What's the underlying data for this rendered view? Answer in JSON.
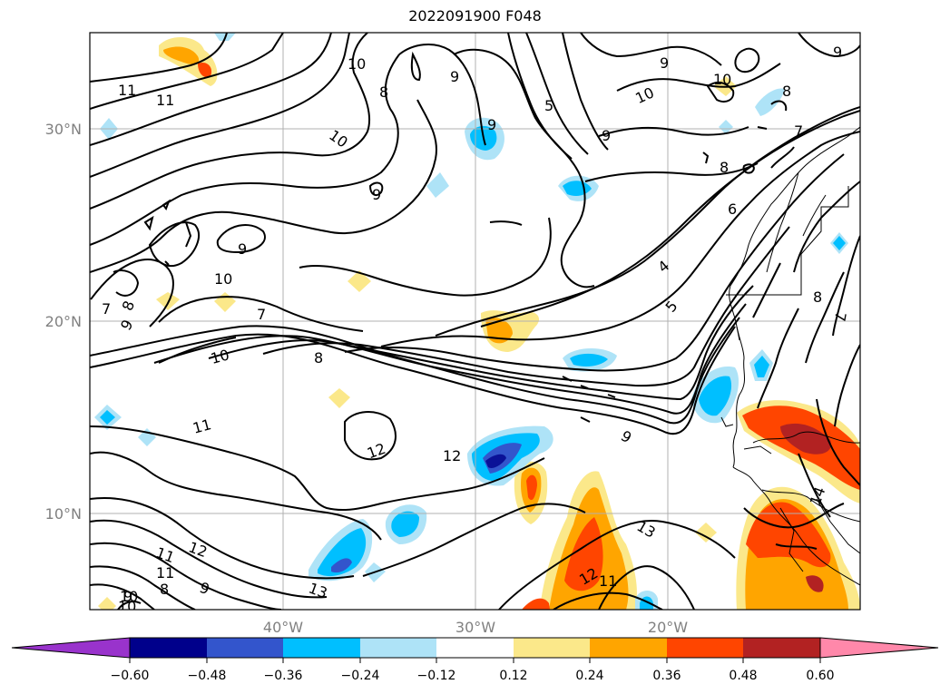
{
  "title": "2022091900 F048",
  "map": {
    "lat_labels": [
      "30°N",
      "20°N",
      "10°N"
    ],
    "lon_labels": [
      "40°W",
      "30°W",
      "20°W"
    ],
    "contour_labels": [
      "11",
      "11",
      "10",
      "10",
      "9",
      "9",
      "8",
      "9",
      "5",
      "10",
      "9",
      "10",
      "9",
      "8",
      "7",
      "8",
      "6",
      "9",
      "9",
      "10",
      "9",
      "7",
      "8",
      "7",
      "10",
      "8",
      "4",
      "5",
      "11",
      "12",
      "12",
      "9",
      "13",
      "11",
      "12",
      "11",
      "10",
      "9",
      "8",
      "9",
      "10",
      "13",
      "12",
      "11",
      "14",
      "8",
      "7"
    ]
  },
  "colorbar": {
    "ticks": [
      "−0.60",
      "−0.48",
      "−0.36",
      "−0.24",
      "−0.12",
      "0.12",
      "0.24",
      "0.36",
      "0.48",
      "0.60"
    ],
    "colors": [
      "#9933cc",
      "#00008b",
      "#3355cc",
      "#00bfff",
      "#aee3f7",
      "#ffffff",
      "#fbe88a",
      "#ffa500",
      "#ff4500",
      "#b22222",
      "#ff88aa"
    ]
  }
}
